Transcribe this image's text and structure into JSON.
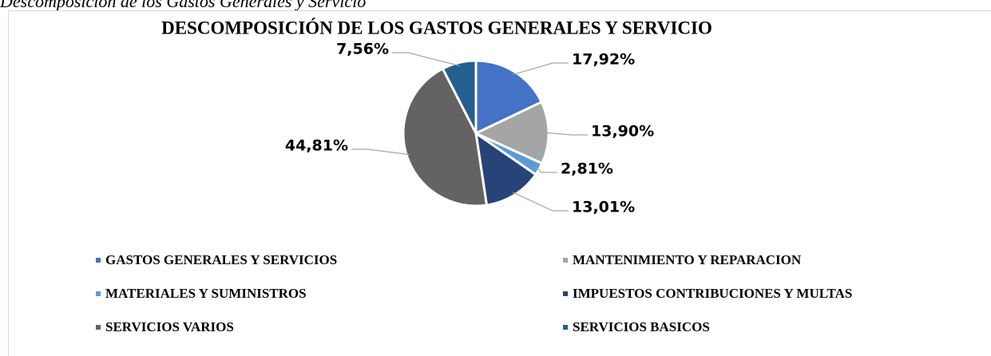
{
  "caption": "Descomposición de los Gastos Generales y Servicio",
  "chart_data": {
    "type": "pie",
    "title": "DESCOMPOSICIÓN DE LOS GASTOS GENERALES Y SERVICIO",
    "categories": [
      "GASTOS GENERALES Y SERVICIOS",
      "MANTENIMIENTO Y REPARACION",
      "MATERIALES Y SUMINISTROS",
      "IMPUESTOS CONTRIBUCIONES Y MULTAS",
      "SERVICIOS VARIOS",
      "SERVICIOS BASICOS"
    ],
    "values": [
      17.92,
      13.9,
      2.81,
      13.01,
      44.81,
      7.56
    ],
    "value_labels": [
      "17,92%",
      "13,90%",
      "2,81%",
      "13,01%",
      "44,81%",
      "7,56%"
    ],
    "colors": [
      "#4472c4",
      "#a5a5a5",
      "#5b9bd5",
      "#264478",
      "#636363",
      "#255e91"
    ],
    "legend": "bottom"
  }
}
